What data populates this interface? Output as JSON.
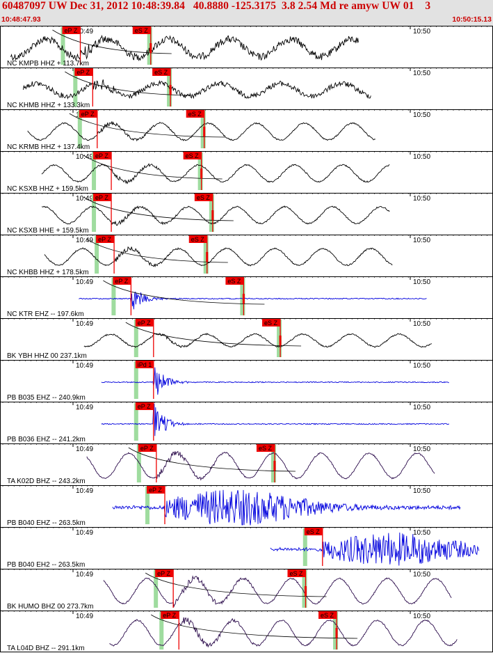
{
  "header": {
    "title": "60487097 UW Dec 31, 2012 10:48:39.84   40.8880 -125.3175  3.8 2.54 Md re amyw UW 01    3",
    "start_time": "10:48:47.93",
    "end_time": "10:50:15.13",
    "background": "#e2e2e2",
    "text_color": "#cc0000"
  },
  "colors": {
    "trace_black": "#000000",
    "trace_blue": "#0000dd",
    "trace_purple": "#2a0a4a",
    "pick_box": "#ee0000",
    "window_band": "#9fdc9f",
    "frame": "#000000"
  },
  "chart_data": {
    "type": "seismogram",
    "time_axis": {
      "start": "10:48:47.93",
      "end": "10:50:15.13",
      "minute_labels": [
        "10:49",
        "10:50"
      ]
    },
    "traces": [
      {
        "label": "NC KMPB HHZ + 113.7km",
        "distance_km": 113.7,
        "color": "black",
        "style": "noisy",
        "envelope": 0.35,
        "phases": [
          {
            "label": "eP Z",
            "sec": 5.0
          },
          {
            "label": "eS Z",
            "sec": 17.5
          }
        ]
      },
      {
        "label": "NC KHMB HHZ + 133.3km",
        "distance_km": 133.3,
        "color": "black",
        "style": "noisy",
        "envelope": 0.25,
        "phases": [
          {
            "label": "eP Z",
            "sec": 7.2
          },
          {
            "label": "eS Z",
            "sec": 21.0
          }
        ]
      },
      {
        "label": "NC KRMB HHZ + 137.4km",
        "distance_km": 137.4,
        "color": "black",
        "style": "slow",
        "envelope": 0.2,
        "phases": [
          {
            "label": "eP Z",
            "sec": 8.0
          },
          {
            "label": "eS Z",
            "sec": 27.0
          }
        ]
      },
      {
        "label": "NC KSXB HHZ + 159.5km",
        "distance_km": 159.5,
        "color": "black",
        "style": "slow",
        "envelope": 0.2,
        "phases": [
          {
            "label": "eP Z",
            "sec": 10.5
          },
          {
            "label": "eS Z",
            "sec": 26.5
          }
        ]
      },
      {
        "label": "NC KSXB HHE + 159.5km",
        "distance_km": 159.5,
        "color": "black",
        "style": "slow",
        "envelope": 0.2,
        "phases": [
          {
            "label": "eP Z",
            "sec": 10.5
          },
          {
            "label": "eS Z",
            "sec": 28.5
          }
        ]
      },
      {
        "label": "NC KHBB HHZ + 178.5km",
        "distance_km": 178.5,
        "color": "black",
        "style": "slow",
        "envelope": 0.2,
        "phases": [
          {
            "label": "eP Z",
            "sec": 11.0
          },
          {
            "label": "eS Z",
            "sec": 27.5
          }
        ]
      },
      {
        "label": "NC KTR EHZ -- 197.6km",
        "distance_km": 197.6,
        "color": "blue",
        "style": "impulse",
        "envelope": 0.35,
        "phases": [
          {
            "label": "eP Z",
            "sec": 14.0
          },
          {
            "label": "eS Z",
            "sec": 34.0
          }
        ]
      },
      {
        "label": "BK YBH HHZ 00 237.1km",
        "distance_km": 237.1,
        "color": "black",
        "style": "slow",
        "envelope": 0.15,
        "phases": [
          {
            "label": "eP Z",
            "sec": 18.0
          },
          {
            "label": "eS Z",
            "sec": 40.5
          }
        ]
      },
      {
        "label": "PB B035 EHZ -- 240.9km",
        "distance_km": 240.9,
        "color": "blue",
        "style": "impulse",
        "envelope": 0.5,
        "phases": [
          {
            "label": "iPd 1",
            "sec": 18.0
          }
        ]
      },
      {
        "label": "PB B036 EHZ -- 241.2km",
        "distance_km": 241.2,
        "color": "blue",
        "style": "impulse",
        "envelope": 0.5,
        "phases": [
          {
            "label": "eP Z",
            "sec": 18.0
          }
        ]
      },
      {
        "label": "TA K02D BHZ -- 243.2km",
        "distance_km": 243.2,
        "color": "purple",
        "style": "slow",
        "envelope": 0.3,
        "phases": [
          {
            "label": "eP Z",
            "sec": 18.5
          },
          {
            "label": "eS Z",
            "sec": 39.5
          }
        ]
      },
      {
        "label": "PB B040 EHZ -- 263.5km",
        "distance_km": 263.5,
        "color": "blue",
        "style": "burst",
        "envelope": 0.5,
        "phases": [
          {
            "label": "eP Z",
            "sec": 20.0
          }
        ]
      },
      {
        "label": "PB B040 EH2 -- 263.5km",
        "distance_km": 263.5,
        "color": "blue",
        "style": "burst",
        "envelope": 0.45,
        "phases": [
          {
            "label": "eS Z",
            "sec": 48.0
          }
        ]
      },
      {
        "label": "BK HUMO BHZ 00 273.7km",
        "distance_km": 273.7,
        "color": "purple",
        "style": "slow",
        "envelope": 0.3,
        "phases": [
          {
            "label": "eP Z",
            "sec": 21.5
          },
          {
            "label": "eS Z",
            "sec": 45.0
          }
        ]
      },
      {
        "label": "TA L04D BHZ -- 291.1km",
        "distance_km": 291.1,
        "color": "purple",
        "style": "slow",
        "envelope": 0.3,
        "phases": [
          {
            "label": "eP Z",
            "sec": 22.5
          },
          {
            "label": "eS Z",
            "sec": 50.5
          }
        ]
      }
    ]
  }
}
